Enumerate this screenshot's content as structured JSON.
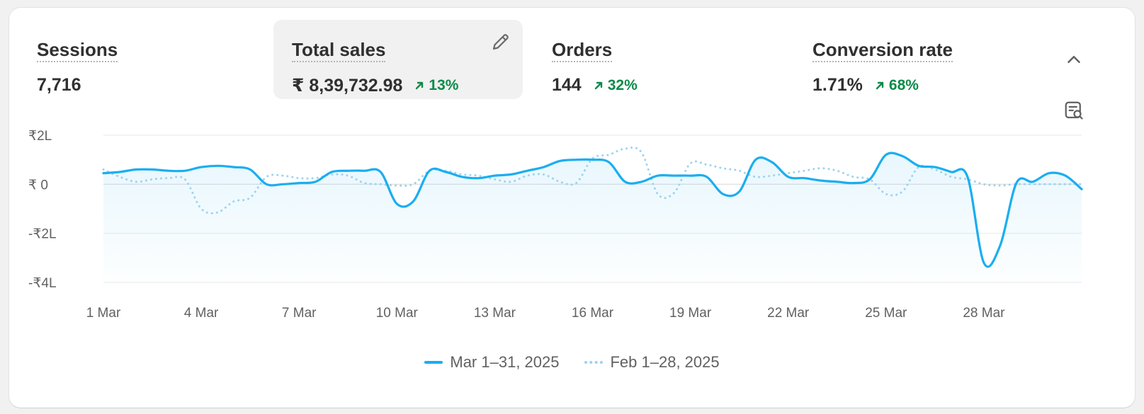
{
  "metrics": [
    {
      "label": "Sessions",
      "value": "7,716",
      "change": ""
    },
    {
      "label": "Total sales",
      "value": "₹ 8,39,732.98",
      "change": "13%"
    },
    {
      "label": "Orders",
      "value": "144",
      "change": "32%"
    },
    {
      "label": "Conversion rate",
      "value": "1.71%",
      "change": "68%"
    }
  ],
  "icons": {
    "edit": "pencil-icon",
    "collapse": "chevron-up-icon",
    "chart_search": "chart-search-icon",
    "trend": "arrow-up-right-icon"
  },
  "colors": {
    "primary_series": "#1aaef0",
    "comparison_series": "#9cd3ef",
    "positive_change": "#0c8a4a",
    "active_metric_bg": "#f1f1f1"
  },
  "chart_data": {
    "type": "line",
    "ylim": [
      -4,
      2
    ],
    "y_ticks": [
      {
        "value": 2,
        "label": "₹2L"
      },
      {
        "value": 0,
        "label": "₹ 0"
      },
      {
        "value": -2,
        "label": "-₹2L"
      },
      {
        "value": -4,
        "label": "-₹4L"
      }
    ],
    "x_ticks": [
      {
        "day": 1,
        "label": "1 Mar"
      },
      {
        "day": 4,
        "label": "4 Mar"
      },
      {
        "day": 7,
        "label": "7 Mar"
      },
      {
        "day": 10,
        "label": "10 Mar"
      },
      {
        "day": 13,
        "label": "13 Mar"
      },
      {
        "day": 16,
        "label": "16 Mar"
      },
      {
        "day": 19,
        "label": "19 Mar"
      },
      {
        "day": 22,
        "label": "22 Mar"
      },
      {
        "day": 25,
        "label": "25 Mar"
      },
      {
        "day": 28,
        "label": "28 Mar"
      }
    ],
    "series": [
      {
        "name": "Mar 1–31, 2025",
        "style": "solid",
        "x": [
          1,
          1.5,
          2,
          2.5,
          3,
          3.5,
          4,
          4.5,
          5,
          5.5,
          6,
          6.5,
          7,
          7.5,
          8,
          8.5,
          9,
          9.5,
          10,
          10.5,
          11,
          11.5,
          12,
          12.5,
          13,
          13.5,
          14,
          14.5,
          15,
          15.5,
          16,
          16.5,
          17,
          17.5,
          18,
          18.5,
          19,
          19.5,
          20,
          20.5,
          21,
          21.5,
          22,
          22.5,
          23,
          23.5,
          24,
          24.5,
          25,
          25.5,
          26,
          26.5,
          27,
          27.5,
          28,
          28.5,
          29,
          29.5,
          30,
          30.5,
          31
        ],
        "values": [
          0.45,
          0.5,
          0.6,
          0.6,
          0.55,
          0.55,
          0.7,
          0.75,
          0.7,
          0.6,
          0.0,
          0.0,
          0.05,
          0.1,
          0.5,
          0.55,
          0.55,
          0.5,
          -0.8,
          -0.7,
          0.55,
          0.5,
          0.3,
          0.25,
          0.35,
          0.4,
          0.55,
          0.7,
          0.95,
          1.0,
          1.0,
          0.9,
          0.1,
          0.1,
          0.35,
          0.35,
          0.35,
          0.3,
          -0.4,
          -0.3,
          1.0,
          0.9,
          0.3,
          0.25,
          0.15,
          0.1,
          0.05,
          0.2,
          1.2,
          1.15,
          0.75,
          0.7,
          0.5,
          0.3,
          -3.2,
          -2.5,
          0.05,
          0.1,
          0.45,
          0.35,
          -0.2
        ]
      },
      {
        "name": "Feb 1–28, 2025",
        "style": "dotted",
        "x": [
          1,
          1.5,
          2,
          2.5,
          3,
          3.5,
          4,
          4.5,
          5,
          5.5,
          6,
          6.5,
          7,
          7.5,
          8,
          8.5,
          9,
          9.5,
          10,
          10.5,
          11,
          11.5,
          12,
          12.5,
          13,
          13.5,
          14,
          14.5,
          15,
          15.5,
          16,
          16.5,
          17,
          17.5,
          18,
          18.5,
          19,
          19.5,
          20,
          20.5,
          21,
          21.5,
          22,
          22.5,
          23,
          23.5,
          24,
          24.5,
          25,
          25.5,
          26,
          26.5,
          27,
          27.5,
          28,
          28.5,
          29,
          29.5,
          30,
          30.5,
          31
        ],
        "values": [
          0.6,
          0.3,
          0.1,
          0.2,
          0.25,
          0.2,
          -1.0,
          -1.15,
          -0.7,
          -0.55,
          0.3,
          0.35,
          0.25,
          0.25,
          0.4,
          0.35,
          0.05,
          0.0,
          -0.05,
          0.0,
          0.55,
          0.55,
          0.4,
          0.35,
          0.2,
          0.1,
          0.35,
          0.4,
          0.1,
          0.05,
          1.05,
          1.2,
          1.45,
          1.3,
          -0.4,
          -0.35,
          0.85,
          0.8,
          0.65,
          0.55,
          0.3,
          0.35,
          0.45,
          0.55,
          0.65,
          0.55,
          0.3,
          0.2,
          -0.4,
          -0.3,
          0.7,
          0.6,
          0.3,
          0.2,
          0.0,
          -0.05,
          0.0,
          0.0,
          0.0,
          0.0,
          0.0
        ]
      }
    ]
  }
}
